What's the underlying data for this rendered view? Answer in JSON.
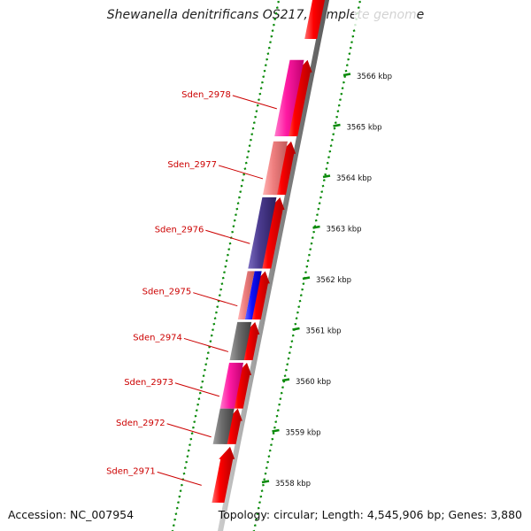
{
  "title": "Shewanella denitrificans OS217, complete genome",
  "footer": {
    "accession": "Accession: NC_007954",
    "summary": "Topology: circular; Length: 4,545,906 bp; Genes: 3,880"
  },
  "colors": {
    "forward_gene": "#ff0000",
    "backbone": "#888888",
    "tick": "#0a8a0a",
    "gene_label": "#cc0000",
    "cog_magenta": "#ff1aa3",
    "cog_salmon": "#f08080",
    "cog_indigo": "#4b3b8f",
    "cog_blue": "#1010ff",
    "cog_gray": "#6e6e6e"
  },
  "scale_labels": [
    {
      "text": "3558 kbp",
      "kbp": 3558
    },
    {
      "text": "3559 kbp",
      "kbp": 3559
    },
    {
      "text": "3560 kbp",
      "kbp": 3560
    },
    {
      "text": "3561 kbp",
      "kbp": 3561
    },
    {
      "text": "3562 kbp",
      "kbp": 3562
    },
    {
      "text": "3563 kbp",
      "kbp": 3563
    },
    {
      "text": "3564 kbp",
      "kbp": 3564
    },
    {
      "text": "3565 kbp",
      "kbp": 3565
    },
    {
      "text": "3566 kbp",
      "kbp": 3566
    }
  ],
  "genes": [
    {
      "label": "Sden_2971",
      "start_kbp": 3557.6,
      "end_kbp": 3558.7,
      "cog": "none"
    },
    {
      "label": "Sden_2972",
      "start_kbp": 3558.75,
      "end_kbp": 3559.45,
      "cog": "gray"
    },
    {
      "label": "Sden_2973",
      "start_kbp": 3559.45,
      "end_kbp": 3560.35,
      "cog": "magenta"
    },
    {
      "label": "Sden_2974",
      "start_kbp": 3560.4,
      "end_kbp": 3561.15,
      "cog": "gray"
    },
    {
      "label": "Sden_2975",
      "start_kbp": 3561.2,
      "end_kbp": 3562.15,
      "cog": "salmon_blue"
    },
    {
      "label": "Sden_2976",
      "start_kbp": 3562.2,
      "end_kbp": 3563.6,
      "cog": "indigo"
    },
    {
      "label": "Sden_2977",
      "start_kbp": 3563.65,
      "end_kbp": 3564.7,
      "cog": "salmon"
    },
    {
      "label": "Sden_2978",
      "start_kbp": 3564.8,
      "end_kbp": 3566.3,
      "cog": "magenta"
    }
  ]
}
